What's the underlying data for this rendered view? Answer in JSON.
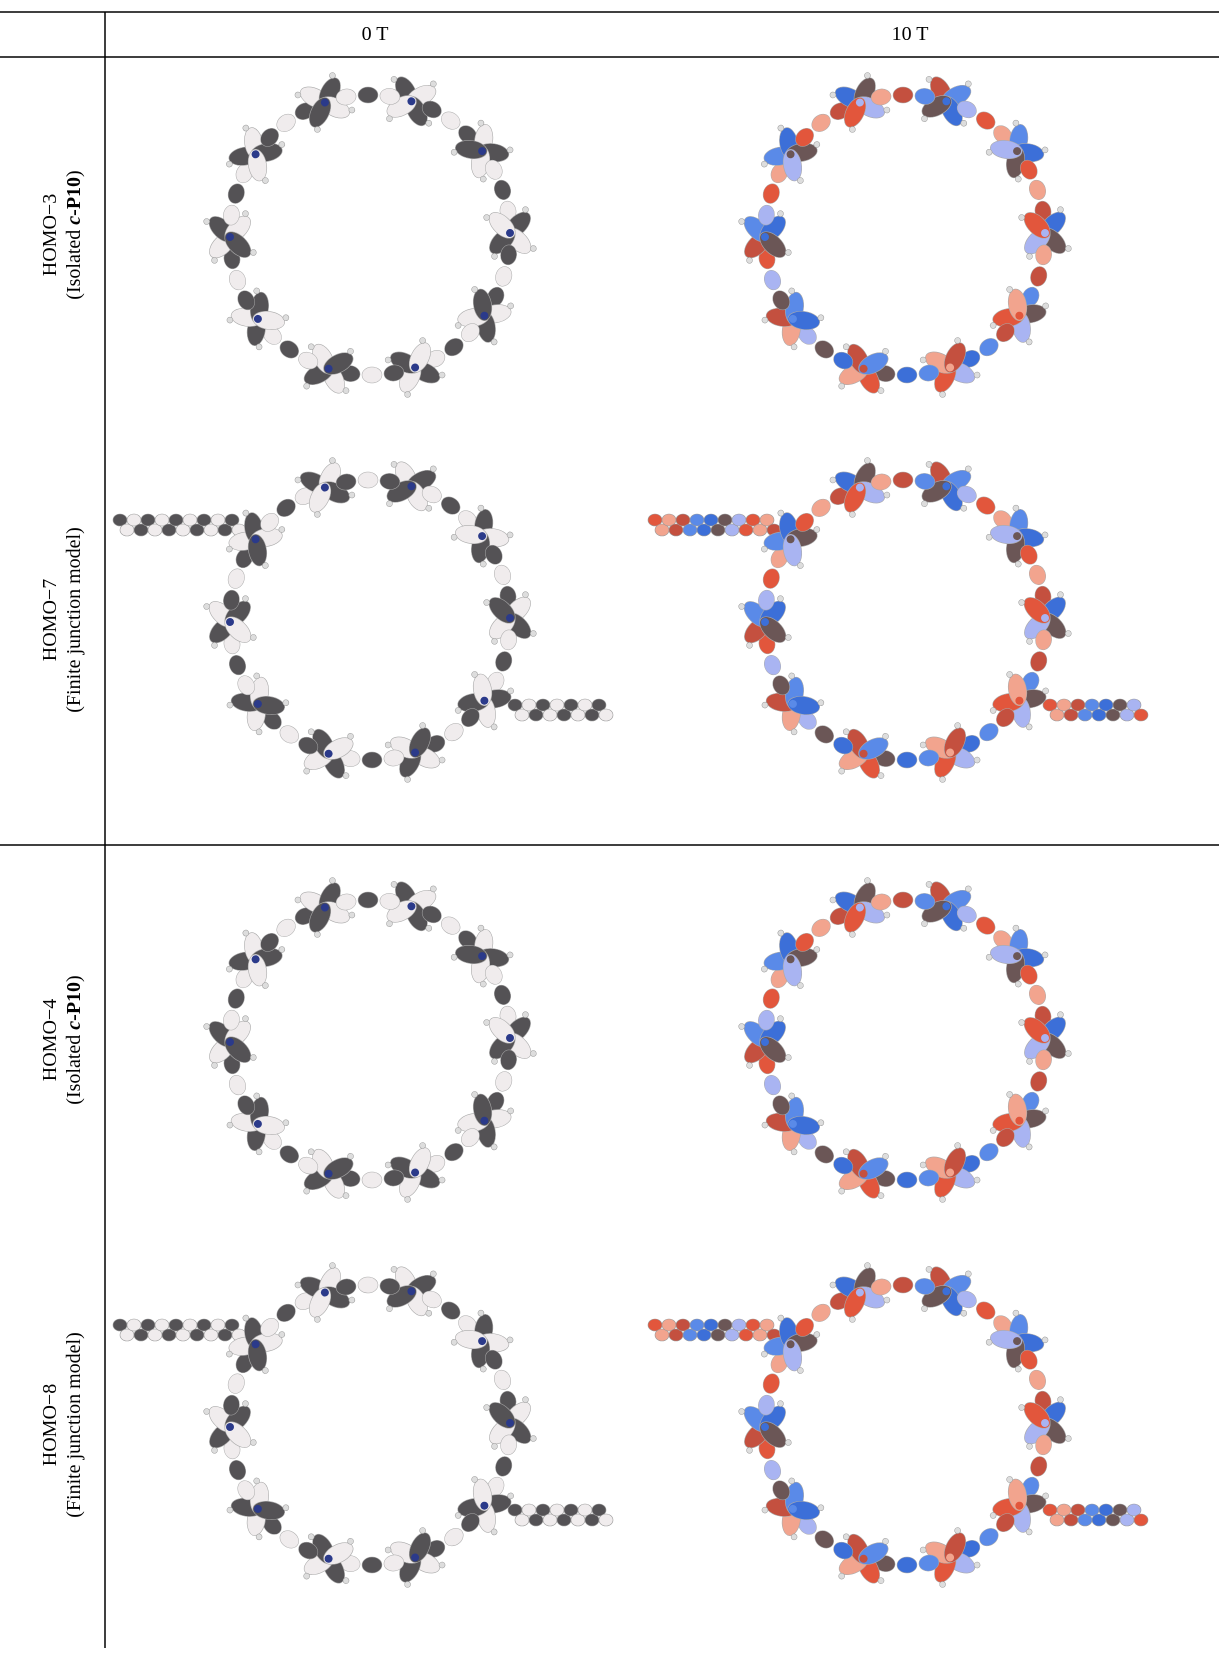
{
  "table": {
    "columns": [
      "0 T",
      "10 T"
    ],
    "rows": [
      {
        "orbital": "HOMO−3",
        "model": {
          "prefix": "(Isolated ",
          "italic": "c",
          "bold": "-P10",
          "suffix": ")"
        }
      },
      {
        "orbital": "HOMO−7",
        "model": {
          "text": "(Finite junction model)"
        }
      },
      {
        "orbital": "HOMO−4",
        "model": {
          "prefix": "(Isolated ",
          "italic": "c",
          "bold": "-P10",
          "suffix": ")"
        }
      },
      {
        "orbital": "HOMO−8",
        "model": {
          "text": "(Finite junction model)"
        }
      }
    ]
  }
}
